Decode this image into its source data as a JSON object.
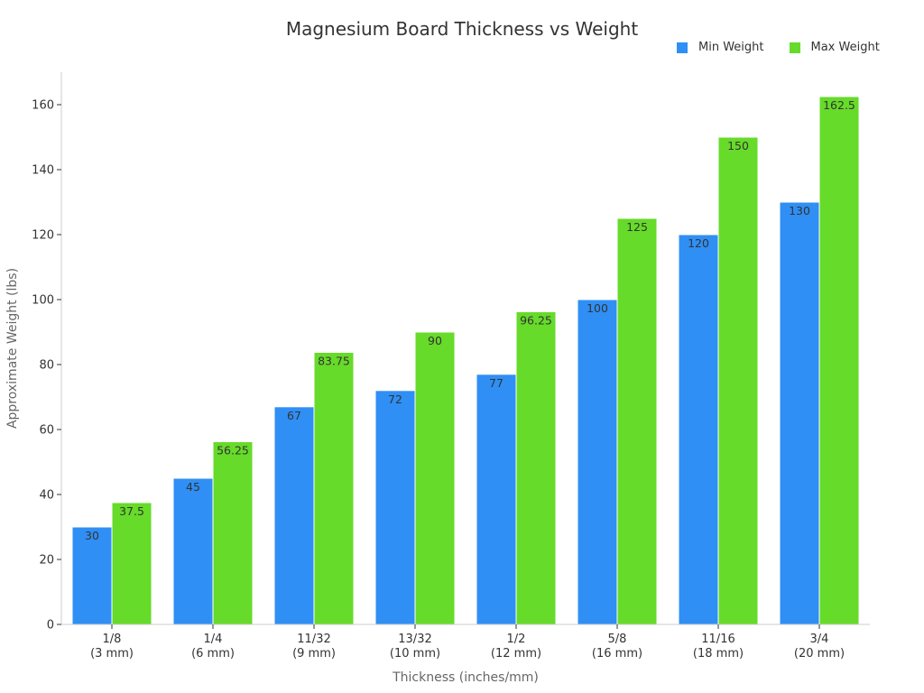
{
  "chart_data": {
    "type": "bar",
    "title": "Magnesium Board Thickness vs Weight",
    "xlabel": "Thickness (inches/mm)",
    "ylabel": "Approximate Weight (lbs)",
    "ylim": [
      0,
      170
    ],
    "yticks": [
      0,
      20,
      40,
      60,
      80,
      100,
      120,
      140,
      160
    ],
    "categories": [
      [
        "1/8",
        "(3 mm)"
      ],
      [
        "1/4",
        "(6 mm)"
      ],
      [
        "11/32",
        "(9 mm)"
      ],
      [
        "13/32",
        "(10 mm)"
      ],
      [
        "1/2",
        "(12 mm)"
      ],
      [
        "5/8",
        "(16 mm)"
      ],
      [
        "11/16",
        "(18 mm)"
      ],
      [
        "3/4",
        "(20 mm)"
      ]
    ],
    "series": [
      {
        "name": "Min Weight",
        "color": "#2f8ff5",
        "values": [
          30,
          45,
          67,
          72,
          77,
          100,
          120,
          130
        ]
      },
      {
        "name": "Max Weight",
        "color": "#66db29",
        "values": [
          37.5,
          56.25,
          83.75,
          90,
          96.25,
          125,
          150,
          162.5
        ]
      }
    ],
    "legend_position": "top-right"
  }
}
